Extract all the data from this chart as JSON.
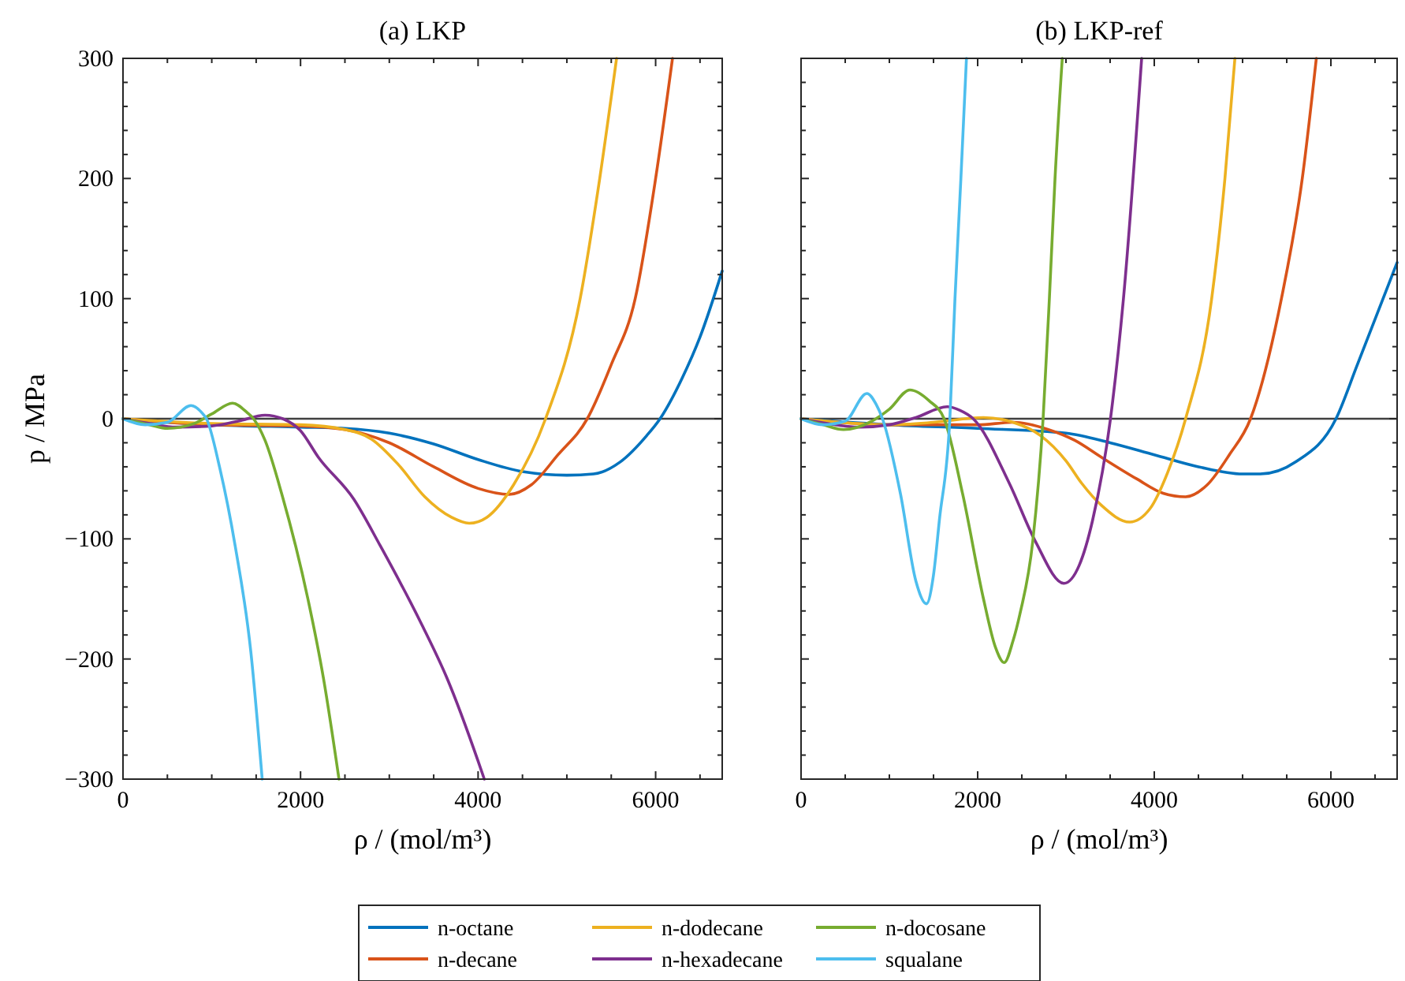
{
  "chart_data": [
    {
      "type": "line",
      "title": "(a) LKP",
      "xlabel": "ρ / (mol/m³)",
      "ylabel": "p / MPa",
      "xlim": [
        0,
        6750
      ],
      "ylim": [
        -300,
        300
      ],
      "legend": "bottom",
      "grid": false,
      "line_style": "solid",
      "marker": "none",
      "xticks": [
        0,
        {
          "value": 500,
          "label": null
        },
        {
          "value": 1000,
          "label": null
        },
        {
          "value": 1500,
          "label": null
        },
        2000,
        {
          "value": 2500,
          "label": null
        },
        {
          "value": 3000,
          "label": null
        },
        {
          "value": 3500,
          "label": null
        },
        4000,
        {
          "value": 4500,
          "label": null
        },
        {
          "value": 5000,
          "label": null
        },
        {
          "value": 5500,
          "label": null
        },
        6000,
        {
          "value": 6500,
          "label": null
        }
      ],
      "yticks": [
        -300,
        {
          "value": -280,
          "label": null
        },
        {
          "value": -260,
          "label": null
        },
        {
          "value": -240,
          "label": null
        },
        {
          "value": -220,
          "label": null
        },
        -200,
        {
          "value": -180,
          "label": null
        },
        {
          "value": -160,
          "label": null
        },
        {
          "value": -140,
          "label": null
        },
        {
          "value": -120,
          "label": null
        },
        -100,
        {
          "value": -80,
          "label": null
        },
        {
          "value": -60,
          "label": null
        },
        {
          "value": -40,
          "label": null
        },
        {
          "value": -20,
          "label": null
        },
        0,
        {
          "value": 20,
          "label": null
        },
        {
          "value": 40,
          "label": null
        },
        {
          "value": 60,
          "label": null
        },
        {
          "value": 80,
          "label": null
        },
        100,
        {
          "value": 120,
          "label": null
        },
        {
          "value": 140,
          "label": null
        },
        {
          "value": 160,
          "label": null
        },
        {
          "value": 180,
          "label": null
        },
        200,
        {
          "value": 220,
          "label": null
        },
        {
          "value": 240,
          "label": null
        },
        {
          "value": 260,
          "label": null
        },
        {
          "value": 280,
          "label": null
        },
        300
      ],
      "ref_lines": [
        {
          "axis": "y",
          "value": 0,
          "color": "#404040"
        }
      ],
      "series": [
        {
          "name": "n-octane",
          "color": "#0072bd",
          "x": [
            0,
            500,
            1000,
            2000,
            2500,
            3000,
            3500,
            4000,
            4500,
            5000,
            5300,
            5600,
            5900,
            6050,
            6300,
            6500,
            6750
          ],
          "values": [
            0,
            -3,
            -5,
            -7,
            -8,
            -12,
            -21,
            -34,
            -44,
            -47,
            -46,
            -36,
            -14,
            0,
            34,
            68,
            123
          ]
        },
        {
          "name": "n-decane",
          "color": "#d95319",
          "x": [
            0,
            1000,
            2000,
            2500,
            3000,
            3500,
            4000,
            4350,
            4600,
            4900,
            5230,
            5500,
            5770,
            6000,
            6190
          ],
          "values": [
            0,
            -5,
            -6,
            -9,
            -20,
            -40,
            -58,
            -63,
            -55,
            -30,
            0,
            45,
            100,
            200,
            300
          ]
        },
        {
          "name": "n-dodecane",
          "color": "#edb120",
          "x": [
            0,
            1000,
            2000,
            2500,
            2800,
            3100,
            3400,
            3700,
            3900,
            4100,
            4400,
            4760,
            5150,
            5350,
            5560
          ],
          "values": [
            0,
            -4,
            -5,
            -9,
            -17,
            -38,
            -65,
            -82,
            -87,
            -82,
            -55,
            0,
            100,
            190,
            300
          ]
        },
        {
          "name": "n-hexadecane",
          "color": "#7e2f8e",
          "x": [
            0,
            300,
            600,
            1000,
            1300,
            1600,
            1800,
            2000,
            2200,
            2600,
            2900,
            3370,
            3650,
            4000,
            4070
          ],
          "values": [
            0,
            -4,
            -7,
            -6,
            -2,
            3,
            0,
            -10,
            -32,
            -67,
            -106,
            -172,
            -216,
            -285,
            -300
          ]
        },
        {
          "name": "n-docosane",
          "color": "#77ac30",
          "x": [
            0,
            300,
            500,
            800,
            1000,
            1234,
            1400,
            1470,
            1600,
            1790,
            2083,
            2258,
            2433
          ],
          "values": [
            0,
            -5,
            -8,
            -4,
            4,
            13,
            5,
            0,
            -18,
            -63,
            -150,
            -216,
            -300
          ]
        },
        {
          "name": "squalane",
          "color": "#4dbeee",
          "x": [
            0,
            250,
            500,
            766,
            900,
            940,
            1090,
            1264,
            1440,
            1568
          ],
          "values": [
            0,
            -5,
            -3,
            11,
            4,
            0,
            -41,
            -106,
            -194,
            -300
          ]
        }
      ]
    },
    {
      "type": "line",
      "title": "(b) LKP-ref",
      "xlabel": "ρ / (mol/m³)",
      "xlim": [
        0,
        6750
      ],
      "ylim": [
        -300,
        300
      ],
      "grid": false,
      "tick_labels": "x",
      "line_style": "solid",
      "marker": "none",
      "xticks": [
        0,
        {
          "value": 500,
          "label": null
        },
        {
          "value": 1000,
          "label": null
        },
        {
          "value": 1500,
          "label": null
        },
        2000,
        {
          "value": 2500,
          "label": null
        },
        {
          "value": 3000,
          "label": null
        },
        {
          "value": 3500,
          "label": null
        },
        4000,
        {
          "value": 4500,
          "label": null
        },
        {
          "value": 5000,
          "label": null
        },
        {
          "value": 5500,
          "label": null
        },
        6000,
        {
          "value": 6500,
          "label": null
        }
      ],
      "yticks": [
        -300,
        {
          "value": -280,
          "label": null
        },
        {
          "value": -260,
          "label": null
        },
        {
          "value": -240,
          "label": null
        },
        {
          "value": -220,
          "label": null
        },
        -200,
        {
          "value": -180,
          "label": null
        },
        {
          "value": -160,
          "label": null
        },
        {
          "value": -140,
          "label": null
        },
        {
          "value": -120,
          "label": null
        },
        -100,
        {
          "value": -80,
          "label": null
        },
        {
          "value": -60,
          "label": null
        },
        {
          "value": -40,
          "label": null
        },
        {
          "value": -20,
          "label": null
        },
        0,
        {
          "value": 20,
          "label": null
        },
        {
          "value": 40,
          "label": null
        },
        {
          "value": 60,
          "label": null
        },
        {
          "value": 80,
          "label": null
        },
        100,
        {
          "value": 120,
          "label": null
        },
        {
          "value": 140,
          "label": null
        },
        {
          "value": 160,
          "label": null
        },
        {
          "value": 180,
          "label": null
        },
        200,
        {
          "value": 220,
          "label": null
        },
        {
          "value": 240,
          "label": null
        },
        {
          "value": 260,
          "label": null
        },
        {
          "value": 280,
          "label": null
        },
        300
      ],
      "ref_lines": [
        {
          "axis": "y",
          "value": 0,
          "color": "#404040"
        }
      ],
      "series": [
        {
          "color": "#0072bd",
          "x": [
            0,
            1000,
            2000,
            3000,
            3500,
            4000,
            4500,
            5000,
            5200,
            5600,
            6058,
            6300,
            6750
          ],
          "values": [
            0,
            -5,
            -8,
            -12,
            -20,
            -30,
            -40,
            -46,
            -46,
            -36,
            0,
            45,
            130
          ]
        },
        {
          "color": "#d95319",
          "x": [
            0,
            1000,
            2000,
            2400,
            2800,
            3100,
            3400,
            3800,
            4100,
            4355,
            4600,
            4850,
            5090,
            5440,
            5676,
            5835
          ],
          "values": [
            0,
            -5,
            -5,
            -3,
            -9,
            -18,
            -32,
            -50,
            -62,
            -65,
            -55,
            -30,
            0,
            100,
            200,
            300
          ]
        },
        {
          "color": "#edb120",
          "x": [
            0,
            1000,
            1500,
            2066,
            2400,
            2712,
            3000,
            3181,
            3400,
            3722,
            3950,
            4150,
            4355,
            4650,
            4800,
            4913
          ],
          "values": [
            0,
            -5,
            -3,
            1,
            -3,
            -14,
            -35,
            -54,
            -72,
            -86,
            -75,
            -45,
            0,
            100,
            200,
            300
          ]
        },
        {
          "color": "#7e2f8e",
          "x": [
            0,
            300,
            657,
            1000,
            1300,
            1655,
            1800,
            1950,
            2360,
            2653,
            2976,
            3150,
            3300,
            3504,
            3651,
            3857
          ],
          "values": [
            0,
            -4,
            -7,
            -5,
            1,
            10,
            7,
            0,
            -54,
            -102,
            -137,
            -122,
            -85,
            0,
            100,
            300
          ]
        },
        {
          "color": "#77ac30",
          "x": [
            0,
            250,
            481,
            800,
            1000,
            1233,
            1450,
            1620,
            1831,
            2066,
            2200,
            2301,
            2400,
            2477,
            2624,
            2741,
            2812,
            2876,
            2958
          ],
          "values": [
            0,
            -5,
            -9,
            -2,
            8,
            24,
            15,
            0,
            -63,
            -150,
            -190,
            -203,
            -185,
            -163,
            -102,
            0,
            100,
            200,
            300
          ]
        },
        {
          "color": "#4dbeee",
          "x": [
            0,
            246,
            500,
            745,
            850,
            922,
            1127,
            1300,
            1420,
            1500,
            1567,
            1685,
            1743,
            1810,
            1873
          ],
          "values": [
            0,
            -5,
            -2,
            21,
            12,
            0,
            -63,
            -135,
            -154,
            -130,
            -84,
            0,
            100,
            200,
            300
          ]
        }
      ]
    }
  ]
}
